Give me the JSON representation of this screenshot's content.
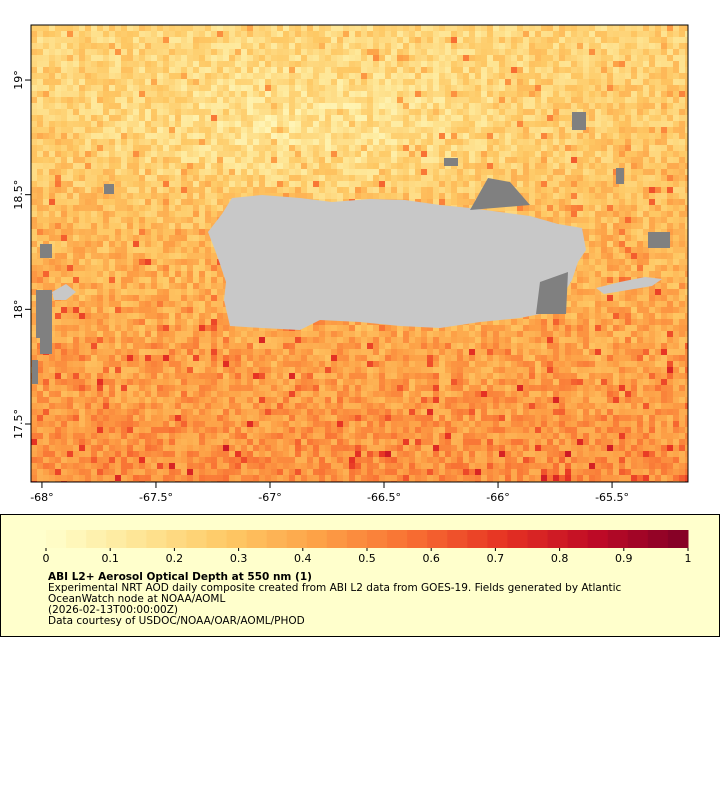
{
  "map": {
    "xlim": [
      -68.048,
      -65.167
    ],
    "ylim": [
      17.247,
      19.24
    ],
    "xticks": [
      {
        "value": -68,
        "label": "-68°"
      },
      {
        "value": -67.5,
        "label": "-67.5°"
      },
      {
        "value": -67,
        "label": "-67°"
      },
      {
        "value": -66.5,
        "label": "-66.5°"
      },
      {
        "value": -66,
        "label": "-66°"
      },
      {
        "value": -65.5,
        "label": "-65.5°"
      }
    ],
    "yticks": [
      {
        "value": 17.5,
        "label": "17.5°"
      },
      {
        "value": 18,
        "label": "18°"
      },
      {
        "value": 18.5,
        "label": "18.5°"
      },
      {
        "value": 19,
        "label": "19°"
      }
    ]
  },
  "colorbar": {
    "lim": [
      0,
      1
    ],
    "ticks": [
      0,
      0.1,
      0.2,
      0.3,
      0.4,
      0.5,
      0.6,
      0.7,
      0.8,
      0.9,
      1
    ]
  },
  "legend": {
    "title": "ABI L2+ Aerosol Optical Depth at 550 nm (1)",
    "lines": [
      "Experimental NRT AOD daily composite created from ABI L2 data from GOES-19. Fields generated by Atlantic",
      "OceanWatch node at NOAA/AOML",
      "(2026-02-13T00:00:00Z)",
      "Data courtesy of USDOC/NOAA/OAR/AOML/PHOD"
    ]
  }
}
